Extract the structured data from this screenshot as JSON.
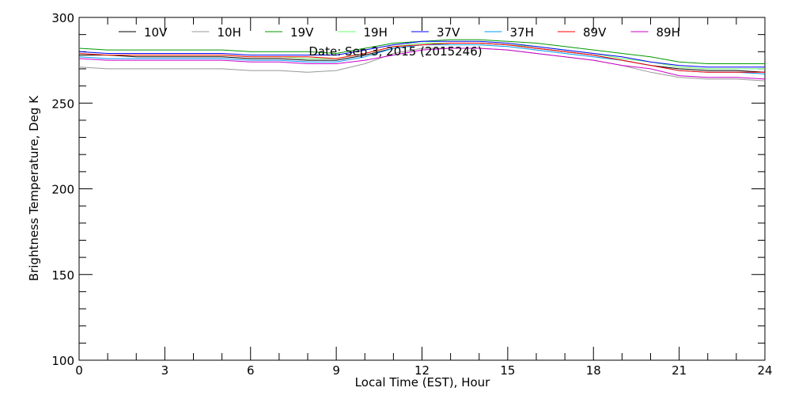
{
  "chart_data": {
    "type": "line",
    "title": "Date: Sep  3, 2015 (2015246)",
    "xlabel": "Local Time (EST), Hour",
    "ylabel": "Brightness Temperature, Deg K",
    "xlim": [
      0,
      24
    ],
    "ylim": [
      100,
      300
    ],
    "xticks": [
      0,
      3,
      6,
      9,
      12,
      15,
      18,
      21,
      24
    ],
    "yticks": [
      100,
      150,
      200,
      250,
      300
    ],
    "grid": false,
    "legend_placement": "top",
    "x": [
      0,
      1,
      2,
      3,
      4,
      5,
      6,
      7,
      8,
      9,
      10,
      11,
      12,
      13,
      14,
      15,
      16,
      17,
      18,
      19,
      20,
      21,
      22,
      23,
      24
    ],
    "series": [
      {
        "name": "10V",
        "color": "#000000",
        "values": [
          278,
          278,
          277,
          277,
          277,
          277,
          276,
          276,
          275,
          275,
          278,
          282,
          284,
          285,
          285,
          284,
          282,
          280,
          278,
          275,
          272,
          270,
          269,
          269,
          268
        ]
      },
      {
        "name": "10H",
        "color": "#999999",
        "values": [
          271,
          270,
          270,
          270,
          270,
          270,
          269,
          269,
          268,
          269,
          273,
          279,
          282,
          282,
          282,
          281,
          279,
          277,
          275,
          272,
          268,
          265,
          264,
          264,
          263
        ]
      },
      {
        "name": "19V",
        "color": "#009900",
        "values": [
          282,
          281,
          281,
          281,
          281,
          281,
          280,
          280,
          280,
          279,
          282,
          285,
          286,
          287,
          287,
          286,
          285,
          283,
          281,
          279,
          277,
          274,
          273,
          273,
          273
        ]
      },
      {
        "name": "19H",
        "color": "#66ff66",
        "values": [
          279,
          278,
          278,
          278,
          278,
          278,
          277,
          277,
          276,
          276,
          279,
          283,
          285,
          285,
          285,
          284,
          283,
          281,
          279,
          276,
          274,
          271,
          270,
          270,
          270
        ]
      },
      {
        "name": "37V",
        "color": "#0000ff",
        "values": [
          280,
          279,
          279,
          279,
          279,
          279,
          278,
          278,
          278,
          278,
          281,
          284,
          286,
          286,
          286,
          285,
          283,
          281,
          279,
          277,
          274,
          272,
          271,
          271,
          271
        ]
      },
      {
        "name": "37H",
        "color": "#0099ff",
        "values": [
          277,
          276,
          276,
          276,
          276,
          276,
          275,
          275,
          274,
          274,
          277,
          282,
          284,
          284,
          284,
          283,
          281,
          279,
          277,
          275,
          272,
          269,
          268,
          268,
          267
        ]
      },
      {
        "name": "89V",
        "color": "#ff0000",
        "values": [
          279,
          278,
          278,
          278,
          278,
          278,
          277,
          277,
          277,
          276,
          279,
          283,
          284,
          285,
          285,
          284,
          282,
          280,
          278,
          275,
          272,
          269,
          268,
          268,
          268
        ]
      },
      {
        "name": "89H",
        "color": "#cc00cc",
        "values": [
          276,
          275,
          275,
          275,
          275,
          275,
          274,
          274,
          273,
          273,
          275,
          278,
          281,
          282,
          282,
          281,
          279,
          277,
          275,
          272,
          270,
          266,
          265,
          265,
          264
        ]
      }
    ]
  }
}
